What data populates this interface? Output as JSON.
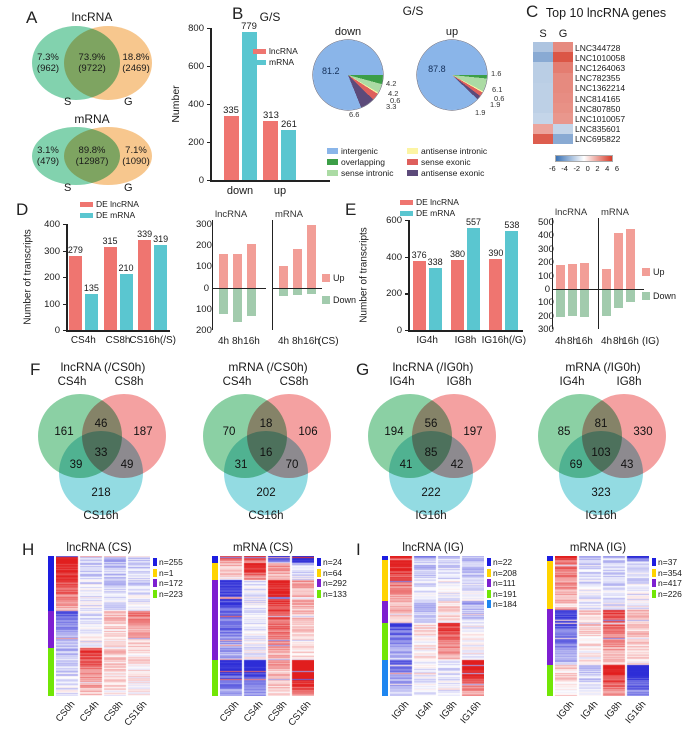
{
  "panels": {
    "A": "A",
    "B": "B",
    "C": "C",
    "D": "D",
    "E": "E",
    "F": "F",
    "G": "G",
    "H": "H",
    "I": "I"
  },
  "panelB": {
    "pies_header": "G/S"
  },
  "pie_legend": {
    "items": [
      {
        "label": "intergenic",
        "color": "#8ab5e9"
      },
      {
        "label": "overlapping",
        "color": "#3c9e47"
      },
      {
        "label": "sense intronic",
        "color": "#abdba4"
      },
      {
        "label": "antisense intronic",
        "color": "#fcf4a3"
      },
      {
        "label": "sense exonic",
        "color": "#de5f5c"
      },
      {
        "label": "antisense exonic",
        "color": "#5c4a7a"
      }
    ]
  },
  "chart_data": [
    {
      "type": "venn2",
      "title": "lncRNA",
      "left_label": "S",
      "right_label": "G",
      "left_pct": "7.3%",
      "left_n": "(962)",
      "center_pct": "73.9%",
      "center_n": "(9722)",
      "right_pct": "18.8%",
      "right_n": "(2469)",
      "left_color": "#82d2ae",
      "right_color": "#f7c78e"
    },
    {
      "type": "venn2",
      "title": "mRNA",
      "left_label": "S",
      "right_label": "G",
      "left_pct": "3.1%",
      "left_n": "(479)",
      "center_pct": "89.8%",
      "center_n": "(12987)",
      "right_pct": "7.1%",
      "right_n": "(1090)",
      "left_color": "#82d2ae",
      "right_color": "#f7c78e"
    },
    {
      "type": "bar",
      "title": "G/S",
      "ylabel": "Number",
      "ymax": 800,
      "yticks": [
        0,
        200,
        400,
        600,
        800
      ],
      "categories": [
        "down",
        "up"
      ],
      "legend": true,
      "series": [
        {
          "name": "lncRNA",
          "color": "#ef7570",
          "values": [
            335,
            313
          ]
        },
        {
          "name": "mRNA",
          "color": "#5ac6d0",
          "values": [
            779,
            261
          ]
        }
      ]
    },
    {
      "type": "pie",
      "title": "down",
      "inside_label": "81.2",
      "inside": [
        24,
        44
      ],
      "labels": [
        "intergenic",
        "overlapping",
        "sense intronic",
        "antisense intronic",
        "sense exonic",
        "antisense exonic"
      ],
      "values": [
        81.2,
        4.2,
        4.2,
        0.6,
        3.3,
        6.6
      ],
      "colors": [
        "#8ab5e9",
        "#3c9e47",
        "#abdba4",
        "#fcf4a3",
        "#de5f5c",
        "#5c4a7a"
      ],
      "draw_order": [
        1,
        2,
        3,
        4,
        5,
        0
      ],
      "callouts": [
        {
          "v": "4.2",
          "y": 62,
          "dx": 3
        },
        {
          "v": "4.2",
          "y": 77,
          "dx": 5
        },
        {
          "v": "0.6",
          "y": 86,
          "dx": 7
        },
        {
          "v": "3.3",
          "y": 95,
          "dx": 3
        },
        {
          "v": "6.6",
          "y": 106,
          "dx": -34
        }
      ]
    },
    {
      "type": "pie",
      "title": "up",
      "inside_label": "87.8",
      "inside": [
        27,
        42
      ],
      "labels": [
        "intergenic",
        "overlapping",
        "sense intronic",
        "antisense intronic",
        "sense exonic",
        "antisense exonic"
      ],
      "values": [
        87.8,
        1.6,
        6.1,
        0.6,
        1.9,
        1.9
      ],
      "colors": [
        "#8ab5e9",
        "#3c9e47",
        "#abdba4",
        "#fcf4a3",
        "#de5f5c",
        "#5c4a7a"
      ],
      "draw_order": [
        1,
        2,
        3,
        4,
        5,
        0
      ],
      "callouts": [
        {
          "v": "1.6",
          "y": 48,
          "dx": 4
        },
        {
          "v": "6.1",
          "y": 71,
          "dx": 5
        },
        {
          "v": "0.6",
          "y": 83,
          "dx": 7
        },
        {
          "v": "1.9",
          "y": 92,
          "dx": 3
        },
        {
          "v": "1.9",
          "y": 103,
          "dx": -12
        }
      ]
    },
    {
      "type": "bar",
      "ylabel": "Number of transcripts",
      "ymax": 400,
      "yticks": [
        0,
        100,
        200,
        300,
        400
      ],
      "categories": [
        "CS4h",
        "CS8h",
        "CS16h(/S)"
      ],
      "legend": true,
      "series": [
        {
          "name": "DE lncRNA",
          "color": "#ef7570",
          "values": [
            279,
            315,
            339
          ]
        },
        {
          "name": "DE mRNA",
          "color": "#5ac6d0",
          "values": [
            135,
            210,
            319
          ]
        }
      ]
    },
    {
      "type": "updown",
      "up_max": 300,
      "down_max": 200,
      "ticks_up": [
        300,
        200,
        100
      ],
      "ticks_down": [
        100,
        200
      ],
      "cats": [
        "4h",
        "8h",
        "16h"
      ],
      "suffix": "(CS)",
      "up_color": "#f29e97",
      "down_color": "#a2cbad",
      "legend": {
        "up": "Up",
        "down": "Down"
      },
      "plots": [
        {
          "title": "lncRNA",
          "up": [
            160,
            160,
            205
          ],
          "down": [
            120,
            155,
            130
          ]
        },
        {
          "title": "mRNA",
          "up": [
            100,
            180,
            295
          ],
          "down": [
            35,
            30,
            25
          ]
        }
      ]
    },
    {
      "type": "bar",
      "ylabel": "Number of transcripts",
      "ymax": 600,
      "yticks": [
        0,
        200,
        400,
        600
      ],
      "categories": [
        "IG4h",
        "IG8h",
        "IG16h(/G)"
      ],
      "legend": true,
      "series": [
        {
          "name": "DE lncRNA",
          "color": "#ef7570",
          "values": [
            376,
            380,
            390
          ]
        },
        {
          "name": "DE mRNA",
          "color": "#5ac6d0",
          "values": [
            338,
            557,
            538
          ]
        }
      ]
    },
    {
      "type": "updown",
      "up_max": 500,
      "down_max": 300,
      "ticks_up": [
        500,
        400,
        300,
        200,
        100
      ],
      "ticks_down": [
        100,
        200,
        300
      ],
      "cats": [
        "4h",
        "8h",
        "16h"
      ],
      "suffix": "(IG)",
      "up_color": "#f29e97",
      "down_color": "#a2cbad",
      "legend": {
        "up": "Up",
        "down": "Down"
      },
      "plots": [
        {
          "title": "lncRNA",
          "up": [
            175,
            185,
            190
          ],
          "down": [
            200,
            195,
            200
          ]
        },
        {
          "title": "mRNA",
          "up": [
            145,
            420,
            450
          ],
          "down": [
            193,
            137,
            88
          ]
        }
      ]
    },
    {
      "type": "venn3",
      "title": "lncRNA (/CS0h)",
      "labels": [
        "CS4h",
        "CS8h"
      ],
      "bottom_label": "CS16h",
      "values": {
        "A": "161",
        "AB": "46",
        "B": "187",
        "ABC": "33",
        "AC": "39",
        "BC": "49",
        "C": "218"
      }
    },
    {
      "type": "venn3",
      "title": "mRNA (/CS0h)",
      "labels": [
        "CS4h",
        "CS8h"
      ],
      "bottom_label": "CS16h",
      "values": {
        "A": "70",
        "AB": "18",
        "B": "106",
        "ABC": "16",
        "AC": "31",
        "BC": "70",
        "C": "202"
      }
    },
    {
      "type": "venn3",
      "title": "lncRNA (/IG0h)",
      "labels": [
        "IG4h",
        "IG8h"
      ],
      "bottom_label": "IG16h",
      "values": {
        "A": "194",
        "AB": "56",
        "B": "197",
        "ABC": "85",
        "AC": "41",
        "BC": "42",
        "C": "222"
      }
    },
    {
      "type": "venn3",
      "title": "mRNA (/IG0h)",
      "labels": [
        "IG4h",
        "IG8h"
      ],
      "bottom_label": "IG16h",
      "values": {
        "A": "85",
        "AB": "81",
        "B": "330",
        "ABC": "103",
        "AC": "69",
        "BC": "43",
        "C": "323"
      }
    },
    {
      "type": "heat10",
      "title": "Top 10 lncRNA genes",
      "columns": [
        "S",
        "G"
      ],
      "genes": [
        "LNC344728",
        "LNC1010058",
        "LNC1264063",
        "LNC782355",
        "LNC1362214",
        "LNC814165",
        "LNC807850",
        "LNC1010057",
        "LNC835601",
        "LNC695822"
      ],
      "values": [
        [
          -2.5,
          3.6
        ],
        [
          -3.6,
          5.2
        ],
        [
          -2.1,
          4.0
        ],
        [
          -2.1,
          3.6
        ],
        [
          -2.0,
          3.6
        ],
        [
          -2.0,
          3.5
        ],
        [
          -2.0,
          3.4
        ],
        [
          -1.8,
          3.2
        ],
        [
          2.8,
          -1.8
        ],
        [
          5.0,
          -3.6
        ]
      ],
      "scale_ticks": [
        -6,
        -4,
        -2,
        0,
        2,
        4,
        6
      ],
      "domain": 6
    },
    {
      "type": "cheat",
      "title": "lncRNA (CS)",
      "columns": [
        "CS0h",
        "CS4h",
        "CS8h",
        "CS16h"
      ],
      "seed": 7,
      "clusters": [
        {
          "n": 255,
          "label": "n=255",
          "color": "#1d1de0",
          "means": [
            1.6,
            -0.3,
            -0.5,
            -0.4
          ]
        },
        {
          "n": 1,
          "label": "n=1",
          "color": "#ffd400",
          "means": [
            0,
            1.5,
            0.5,
            0.5
          ]
        },
        {
          "n": 172,
          "label": "n=172",
          "color": "#7d1fd1",
          "means": [
            -1.0,
            -0.2,
            0.4,
            0.9
          ]
        },
        {
          "n": 223,
          "label": "n=223",
          "color": "#72e605",
          "means": [
            -0.4,
            1.2,
            0.3,
            0.2
          ]
        }
      ]
    },
    {
      "type": "cheat",
      "title": "mRNA (CS)",
      "columns": [
        "CS0h",
        "CS4h",
        "CS8h",
        "CS16h"
      ],
      "seed": 13,
      "clusters": [
        {
          "n": 24,
          "label": "n=24",
          "color": "#1d1de0",
          "means": [
            1.2,
            1.6,
            -1.2,
            -2.4
          ]
        },
        {
          "n": 64,
          "label": "n=64",
          "color": "#ffd400",
          "means": [
            0.5,
            1.7,
            0.8,
            -0.4
          ]
        },
        {
          "n": 292,
          "label": "n=292",
          "color": "#7d1fd1",
          "means": [
            -1.5,
            -0.2,
            1.5,
            0.6
          ]
        },
        {
          "n": 133,
          "label": "n=133",
          "color": "#72e605",
          "means": [
            -1.6,
            -1.8,
            0.6,
            2.2
          ]
        }
      ]
    },
    {
      "type": "cheat",
      "title": "lncRNA (IG)",
      "columns": [
        "IG0h",
        "IG4h",
        "IG8h",
        "IG16h"
      ],
      "seed": 21,
      "clusters": [
        {
          "n": 22,
          "label": "n=22",
          "color": "#1d1de0",
          "means": [
            1.8,
            -0.8,
            -0.5,
            -0.5
          ]
        },
        {
          "n": 208,
          "label": "n=208",
          "color": "#ffd400",
          "means": [
            1.5,
            -0.4,
            -0.3,
            -0.4
          ]
        },
        {
          "n": 111,
          "label": "n=111",
          "color": "#7d1fd1",
          "means": [
            0.6,
            -0.5,
            0.3,
            -0.6
          ]
        },
        {
          "n": 191,
          "label": "n=191",
          "color": "#72e605",
          "means": [
            -1.2,
            0.2,
            1.3,
            0.0
          ]
        },
        {
          "n": 184,
          "label": "n=184",
          "color": "#1e86f0",
          "means": [
            -1.0,
            -0.2,
            -0.2,
            1.7
          ]
        }
      ]
    },
    {
      "type": "cheat",
      "title": "mRNA (IG)",
      "columns": [
        "IG0h",
        "IG4h",
        "IG8h",
        "IG16h"
      ],
      "seed": 29,
      "clusters": [
        {
          "n": 37,
          "label": "n=37",
          "color": "#1d1de0",
          "means": [
            2.0,
            -0.5,
            -0.5,
            -1.6
          ]
        },
        {
          "n": 354,
          "label": "n=354",
          "color": "#ffd400",
          "means": [
            1.0,
            -0.3,
            -0.4,
            -0.3
          ]
        },
        {
          "n": 417,
          "label": "n=417",
          "color": "#7d1fd1",
          "means": [
            -1.4,
            0.3,
            1.2,
            0.4
          ]
        },
        {
          "n": 226,
          "label": "n=226",
          "color": "#72e605",
          "means": [
            0.3,
            -0.4,
            1.7,
            -1.9
          ]
        }
      ]
    }
  ]
}
